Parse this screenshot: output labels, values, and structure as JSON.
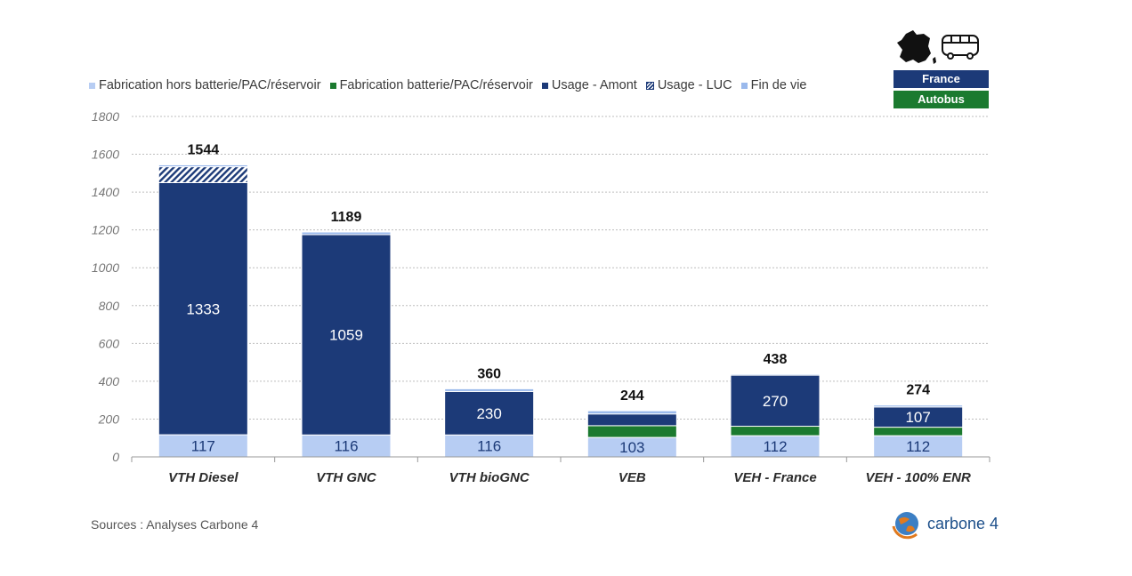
{
  "legend": [
    {
      "label": "Fabrication hors batterie/PAC/réservoir",
      "color": "#b7cdf3"
    },
    {
      "label": "Fabrication batterie/PAC/réservoir",
      "color": "#1b7a2f"
    },
    {
      "label": "Usage - Amont",
      "color": "#1c3a78"
    },
    {
      "label": "Usage - LUC",
      "color": "#1c3a78",
      "hatched": true
    },
    {
      "label": "Fin de vie",
      "color": "#9ab9ec"
    }
  ],
  "badges": {
    "country": "France",
    "vehicle": "Autobus"
  },
  "icons": {
    "country": "france-map-icon",
    "vehicle": "bus-icon"
  },
  "sources": "Sources : Analyses Carbone 4",
  "logo_text": "carbone 4",
  "chart_data": {
    "type": "bar",
    "stacked": true,
    "categories": [
      "VTH Diesel",
      "VTH GNC",
      "VTH bioGNC",
      "VEB",
      "VEH - France",
      "VEH - 100% ENR"
    ],
    "yticks": [
      0,
      200,
      400,
      600,
      800,
      1000,
      1200,
      1400,
      1600,
      1800
    ],
    "ylim": [
      0,
      1800
    ],
    "grid": true,
    "legend_position": "top",
    "series": [
      {
        "name": "Fabrication hors batterie/PAC/réservoir",
        "color": "#b7cdf3",
        "values": [
          117,
          116,
          116,
          103,
          112,
          112
        ],
        "labels": [
          "117",
          "116",
          "116",
          "103",
          "112",
          "112"
        ]
      },
      {
        "name": "Fabrication batterie/PAC/réservoir",
        "color": "#1b7a2f",
        "values": [
          0,
          0,
          0,
          62,
          50,
          45
        ],
        "labels": [
          "",
          "",
          "",
          "",
          "",
          ""
        ]
      },
      {
        "name": "Usage - Amont",
        "color": "#1c3a78",
        "values": [
          1333,
          1059,
          230,
          62,
          270,
          107
        ],
        "labels": [
          "1333",
          "1059",
          "230",
          "",
          "270",
          "107"
        ]
      },
      {
        "name": "Usage - LUC",
        "color": "#1c3a78",
        "hatched": true,
        "values": [
          84,
          0,
          0,
          0,
          0,
          0
        ],
        "labels": [
          "",
          "",
          "",
          "",
          "",
          ""
        ]
      },
      {
        "name": "Fin de vie",
        "color": "#9ab9ec",
        "values": [
          10,
          14,
          14,
          17,
          6,
          10
        ],
        "labels": [
          "",
          "",
          "",
          "",
          "",
          ""
        ]
      }
    ],
    "totals": [
      1544,
      1189,
      360,
      244,
      438,
      274
    ]
  }
}
